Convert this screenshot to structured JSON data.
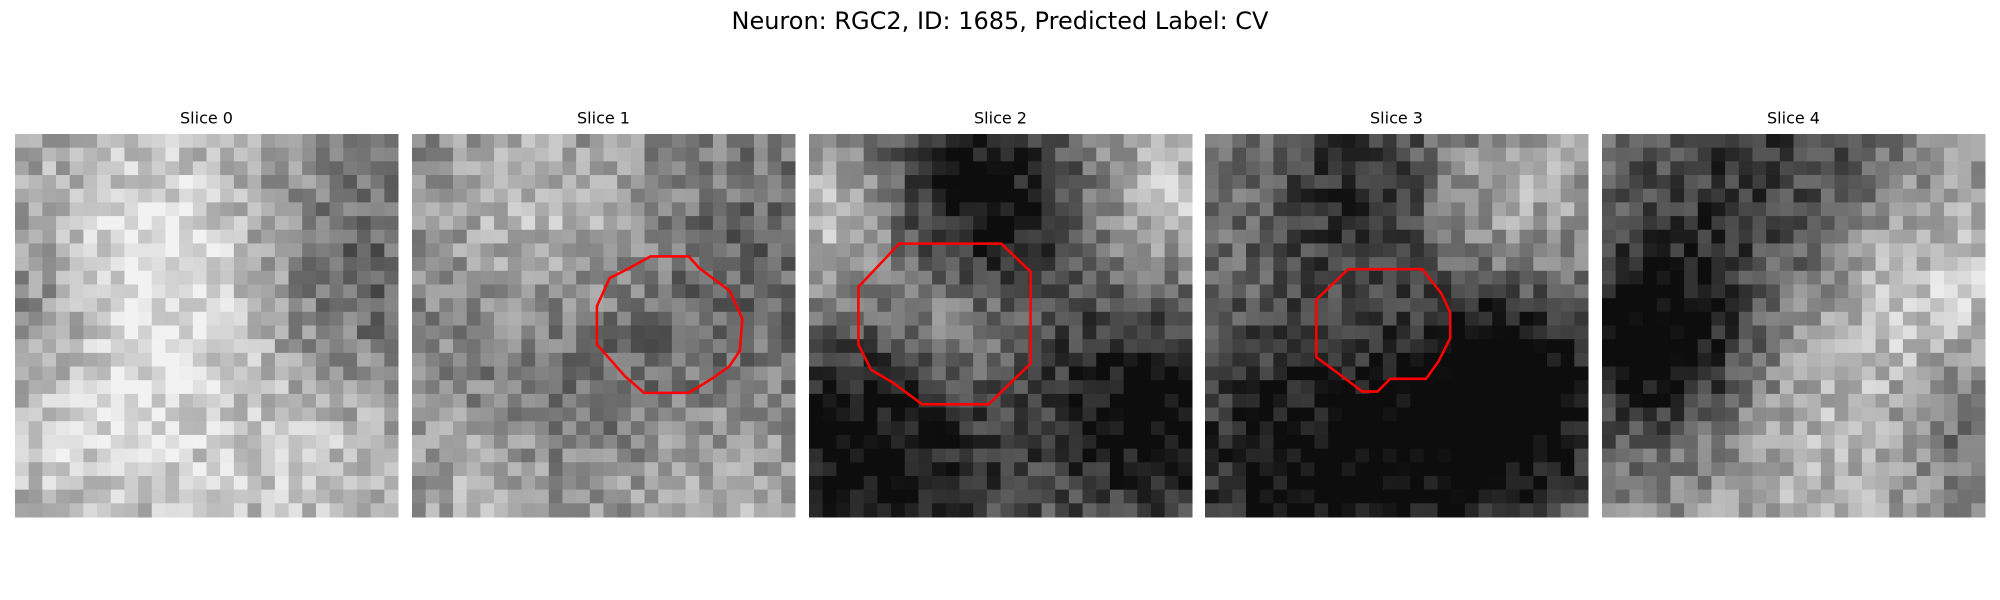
{
  "title": "Neuron: RGC2, ID: 1685, Predicted Label: CV",
  "panels": [
    {
      "label": "Slice 0"
    },
    {
      "label": "Slice 1"
    },
    {
      "label": "Slice 2"
    },
    {
      "label": "Slice 3"
    },
    {
      "label": "Slice 4"
    }
  ]
}
